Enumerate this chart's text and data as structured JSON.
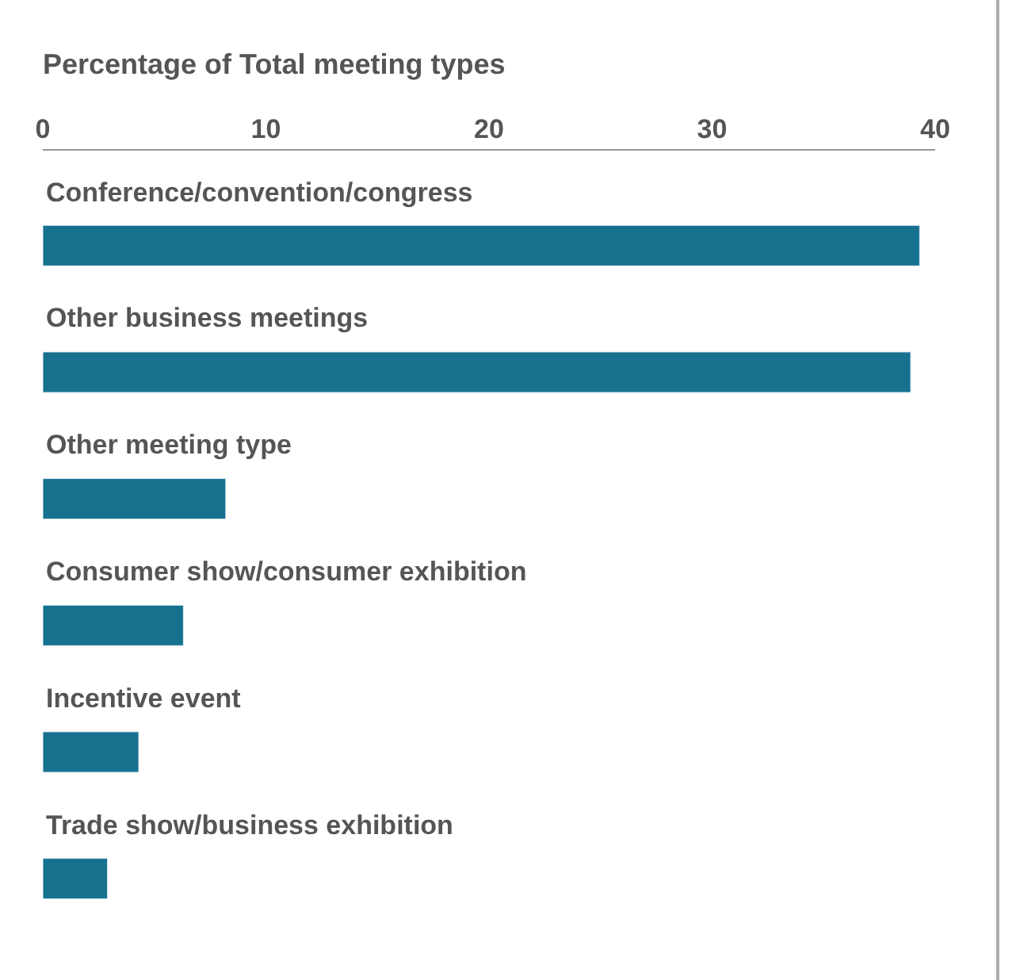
{
  "chart_data": {
    "type": "bar",
    "orientation": "horizontal",
    "title": "Percentage of Total meeting types",
    "categories": [
      "Conference/convention/congress",
      "Other business meetings",
      "Other meeting type",
      "Consumer show/consumer exhibition",
      "Incentive event",
      "Trade show/business exhibition"
    ],
    "values": [
      39.3,
      38.9,
      8.2,
      6.3,
      4.3,
      2.9
    ],
    "color": "#16718f",
    "xlim": [
      0,
      40
    ],
    "xticks": [
      0,
      10,
      20,
      30,
      40
    ]
  }
}
